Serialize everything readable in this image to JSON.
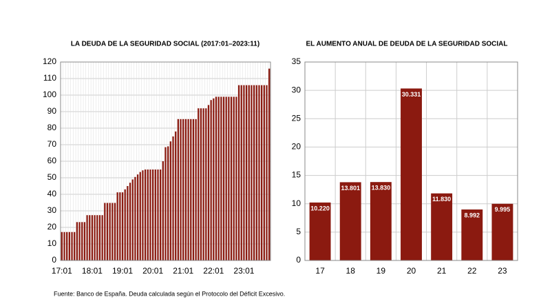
{
  "chart_data": [
    {
      "type": "bar",
      "title": "LA DEUDA DE LA SEGURIDAD SOCIAL (2017:01–2023:11)",
      "categories": [
        "17:01",
        null,
        null,
        null,
        null,
        null,
        null,
        null,
        null,
        null,
        null,
        null,
        "18:01",
        null,
        null,
        null,
        null,
        null,
        null,
        null,
        null,
        null,
        null,
        null,
        "19:01",
        null,
        null,
        null,
        null,
        null,
        null,
        null,
        null,
        null,
        null,
        null,
        "20:01",
        null,
        null,
        null,
        null,
        null,
        null,
        null,
        null,
        null,
        null,
        null,
        "21:01",
        null,
        null,
        null,
        null,
        null,
        null,
        null,
        null,
        null,
        null,
        null,
        "22:01",
        null,
        null,
        null,
        null,
        null,
        null,
        null,
        null,
        null,
        null,
        null,
        "23:01",
        null,
        null,
        null,
        null,
        null,
        null,
        null,
        null,
        null,
        null
      ],
      "values": [
        17.2,
        17.2,
        17.2,
        17.2,
        17.2,
        17.2,
        23.2,
        23.2,
        23.2,
        23.2,
        27.4,
        27.4,
        27.4,
        27.4,
        27.4,
        27.4,
        27.4,
        34.8,
        34.8,
        34.8,
        34.8,
        34.8,
        41.2,
        41.2,
        41.2,
        43,
        45,
        47,
        49,
        50.5,
        52,
        53.5,
        54.5,
        55,
        55,
        55,
        55,
        55,
        55,
        55,
        60,
        68.5,
        69,
        72,
        75,
        78,
        85.5,
        85.5,
        85.5,
        85.5,
        85.5,
        85.5,
        85.5,
        85.5,
        92,
        92,
        92,
        92,
        94,
        97,
        98,
        99,
        99,
        99,
        99,
        99,
        99,
        99,
        99,
        99,
        106,
        106,
        106,
        106,
        106,
        106,
        106,
        106,
        106,
        106,
        106,
        106,
        116
      ],
      "color": "#8b1a10",
      "ylim": [
        0,
        120
      ],
      "yticks": [
        0,
        10,
        20,
        30,
        40,
        50,
        60,
        70,
        80,
        90,
        100,
        110,
        120
      ],
      "grid": true
    },
    {
      "type": "bar",
      "title": "EL AUMENTO ANUAL DE DEUDA DE LA SEGURIDAD SOCIAL",
      "categories": [
        "17",
        "18",
        "19",
        "20",
        "21",
        "22",
        "23"
      ],
      "values": [
        10.22,
        13.801,
        13.83,
        30.331,
        11.83,
        8.992,
        9.995
      ],
      "value_labels": [
        "10.220",
        "13.801",
        "13.830",
        "30.331",
        "11.830",
        "8.992",
        "9.995"
      ],
      "color": "#8b1a10",
      "ylim": [
        0,
        35
      ],
      "yticks": [
        0,
        5,
        10,
        15,
        20,
        25,
        30,
        35
      ],
      "grid": true
    }
  ],
  "source": "Fuente: Banco de España.  Deuda calculada según el Protocolo del Déficit Excesivo."
}
